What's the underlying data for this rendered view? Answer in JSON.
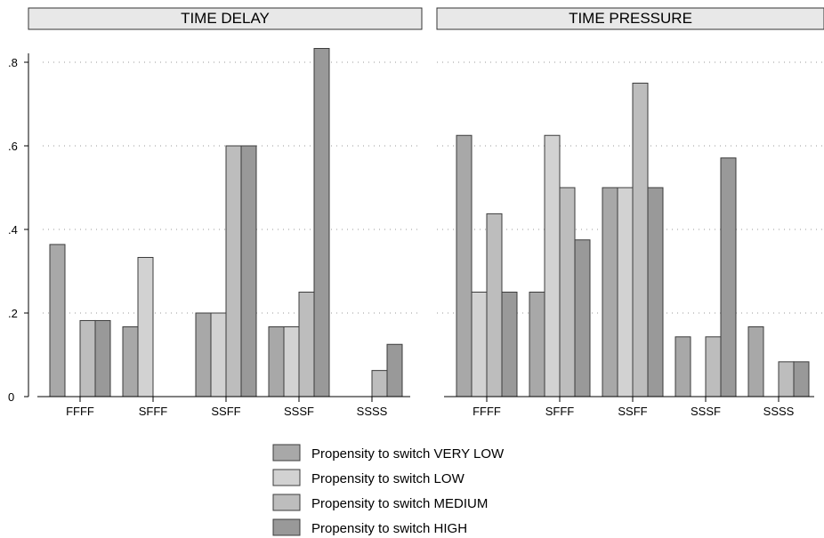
{
  "chart_data": [
    {
      "type": "bar",
      "title": "TIME DELAY",
      "categories": [
        "FFFF",
        "SFFF",
        "SSFF",
        "SSSF",
        "SSSS"
      ],
      "ylim": [
        0,
        0.85
      ],
      "yticks": [
        0,
        0.2,
        0.4,
        0.6,
        0.8
      ],
      "ytick_labels": [
        "0",
        ".2",
        ".4",
        ".6",
        ".8"
      ],
      "grid": true,
      "series": [
        {
          "name": "Propensity to switch VERY LOW",
          "values": [
            0.364,
            0.167,
            0.2,
            0.167,
            0
          ]
        },
        {
          "name": "Propensity to switch LOW",
          "values": [
            0,
            0.333,
            0.2,
            0.167,
            0
          ]
        },
        {
          "name": "Propensity to switch MEDIUM",
          "values": [
            0.182,
            0,
            0.6,
            0.25,
            0.0625
          ]
        },
        {
          "name": "Propensity to switch HIGH",
          "values": [
            0.182,
            0,
            0.6,
            0.833,
            0.125
          ]
        }
      ]
    },
    {
      "type": "bar",
      "title": "TIME PRESSURE",
      "categories": [
        "FFFF",
        "SFFF",
        "SSFF",
        "SSSF",
        "SSSS"
      ],
      "ylim": [
        0,
        0.85
      ],
      "grid": true,
      "series": [
        {
          "name": "Propensity to switch VERY LOW",
          "values": [
            0.625,
            0.25,
            0.5,
            0.143,
            0.167
          ]
        },
        {
          "name": "Propensity to switch LOW",
          "values": [
            0.25,
            0.625,
            0.5,
            0,
            0
          ]
        },
        {
          "name": "Propensity to switch MEDIUM",
          "values": [
            0.4375,
            0.5,
            0.75,
            0.143,
            0.0833
          ]
        },
        {
          "name": "Propensity to switch HIGH",
          "values": [
            0.25,
            0.375,
            0.5,
            0.571,
            0.0833
          ]
        }
      ]
    }
  ],
  "legend": {
    "placement": "bottom",
    "items": [
      {
        "label": "Propensity to switch VERY LOW",
        "color": "#a8a8a8"
      },
      {
        "label": "Propensity to switch LOW",
        "color": "#d2d2d2"
      },
      {
        "label": "Propensity to switch MEDIUM",
        "color": "#bdbdbd"
      },
      {
        "label": "Propensity to switch HIGH",
        "color": "#999999"
      }
    ]
  },
  "colors": {
    "series": [
      "#a8a8a8",
      "#d2d2d2",
      "#bdbdbd",
      "#999999"
    ],
    "panel_header_fill": "#e8e8e8",
    "bar_stroke": "#3c3c3c",
    "grid": "#9a9a9a"
  }
}
